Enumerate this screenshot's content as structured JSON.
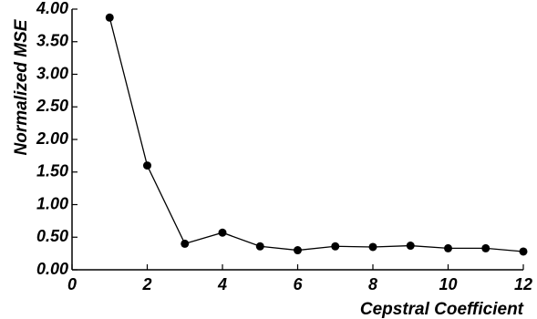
{
  "chart_data": {
    "type": "line",
    "title": "",
    "xlabel": "Cepstral Coefficient",
    "ylabel": "Normalized MSE",
    "xlim": [
      0,
      12
    ],
    "ylim": [
      0,
      4
    ],
    "x_ticks": [
      "0",
      "2",
      "4",
      "6",
      "8",
      "10",
      "12"
    ],
    "y_ticks": [
      "0.00",
      "0.50",
      "1.00",
      "1.50",
      "2.00",
      "2.50",
      "3.00",
      "3.50",
      "4.00"
    ],
    "grid": false,
    "series": [
      {
        "x": [
          1,
          2,
          3,
          4,
          5,
          6,
          7,
          8,
          9,
          10,
          11,
          12
        ],
        "values": [
          3.87,
          1.6,
          0.4,
          0.57,
          0.36,
          0.3,
          0.36,
          0.35,
          0.37,
          0.33,
          0.33,
          0.28
        ]
      }
    ]
  }
}
